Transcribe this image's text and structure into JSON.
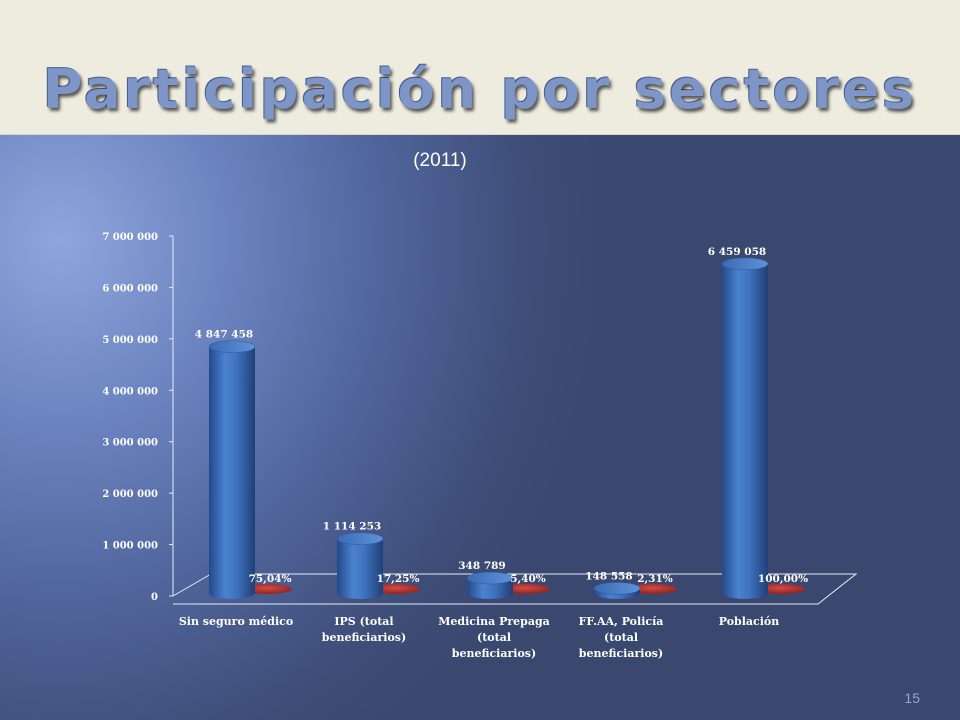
{
  "slide": {
    "title": "Participación por sectores",
    "subtitle": "(2011)",
    "page_number": "15"
  },
  "colors": {
    "bar": "#3f72bd",
    "percent_disc": "#b5312b",
    "header_bg": "#eeecdf"
  },
  "chart_data": {
    "type": "bar",
    "title": "",
    "categories": [
      "Sin seguro médico",
      "IPS (total beneficiarios)",
      "Medicina Prepaga (total beneficiarios)",
      "FF.AA, Policía (total beneficiarios)",
      "Población"
    ],
    "category_label_lines": [
      [
        "Sin seguro médico"
      ],
      [
        "IPS (total",
        "beneficiarios)"
      ],
      [
        "Medicina Prepaga",
        "(total",
        "beneficiarios)"
      ],
      [
        "FF.AA, Policía",
        "(total",
        "beneficiarios)"
      ],
      [
        "Población"
      ]
    ],
    "series": [
      {
        "values": [
          4847458,
          1114253,
          348789,
          148558,
          6459058
        ],
        "labels": [
          "4 847 458",
          "1 114 253",
          "348 789",
          "148 558",
          "6 459 058"
        ]
      },
      {
        "values": [
          75.04,
          17.25,
          5.4,
          2.31,
          100.0
        ],
        "labels": [
          "75,04%",
          "17,25%",
          "5,40%",
          "2,31%",
          "100,00%"
        ]
      }
    ],
    "y_ticks": [
      0,
      1000000,
      2000000,
      3000000,
      4000000,
      5000000,
      6000000,
      7000000
    ],
    "y_tick_labels": [
      "0",
      "1 000 000",
      "2 000 000",
      "3 000 000",
      "4 000 000",
      "5 000 000",
      "6 000 000",
      "7 000 000"
    ],
    "ylim": [
      0,
      7000000
    ],
    "grid": false,
    "legend": "none"
  }
}
